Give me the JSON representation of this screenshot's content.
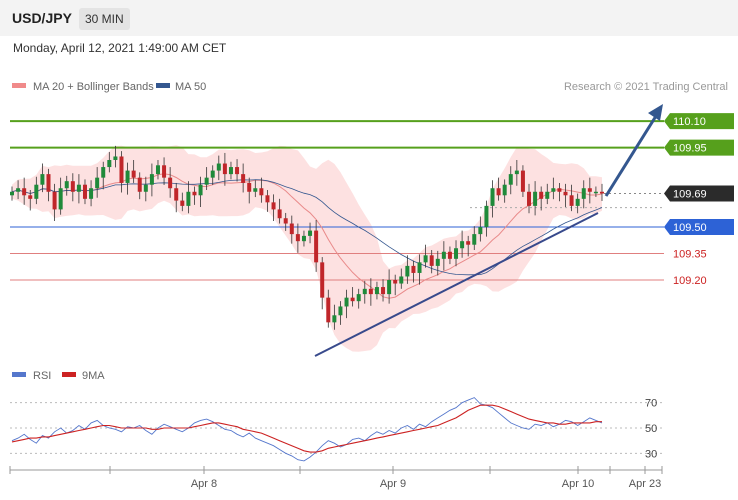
{
  "header": {
    "symbol": "USD/JPY",
    "timeframe": "30 MIN"
  },
  "datetime": "Monday, April 12, 2021 1:49:00 AM CET",
  "legend": [
    {
      "label": "MA 20 + Bollinger Bands",
      "color": "#f08a8a"
    },
    {
      "label": "MA 50",
      "color": "#34578f"
    }
  ],
  "credit": "Research © 2021 Trading Central",
  "rsi_legend": [
    {
      "label": "RSI",
      "color": "#5577cc"
    },
    {
      "label": "9MA",
      "color": "#cc2222"
    }
  ],
  "colors": {
    "resistance": "#56a01c",
    "support": "#2d62d6",
    "pivot_dark": "#2b2b2b",
    "red_line": "#e07f7f",
    "trend_line": "#384a8c",
    "arrow": "#34578f",
    "bollinger_fill": "#fcd9d9"
  },
  "chart_data": [
    {
      "type": "candlestick",
      "title": "USD/JPY",
      "timeframe": "30 MIN",
      "x_tick_labels": [
        "Apr 8",
        "Apr 9",
        "Apr 10",
        "Apr 23"
      ],
      "ylim": [
        108.69,
        110.22
      ],
      "level_labels": [
        {
          "value": 110.1,
          "text": "110.10",
          "style": "green-box"
        },
        {
          "value": 109.95,
          "text": "109.95",
          "style": "green-box"
        },
        {
          "value": 109.69,
          "text": "109.69",
          "style": "dark-box"
        },
        {
          "value": 109.5,
          "text": "109.50",
          "style": "blue-box"
        },
        {
          "value": 109.35,
          "text": "109.35",
          "style": "red-text"
        },
        {
          "value": 109.2,
          "text": "109.20",
          "style": "red-text"
        }
      ],
      "close": [
        109.7,
        109.72,
        109.68,
        109.66,
        109.74,
        109.8,
        109.7,
        109.6,
        109.72,
        109.76,
        109.7,
        109.74,
        109.66,
        109.72,
        109.78,
        109.84,
        109.88,
        109.9,
        109.75,
        109.82,
        109.78,
        109.7,
        109.74,
        109.8,
        109.85,
        109.78,
        109.72,
        109.65,
        109.62,
        109.7,
        109.68,
        109.74,
        109.78,
        109.82,
        109.86,
        109.8,
        109.84,
        109.8,
        109.75,
        109.7,
        109.72,
        109.68,
        109.64,
        109.6,
        109.55,
        109.52,
        109.46,
        109.42,
        109.45,
        109.48,
        109.3,
        109.1,
        108.96,
        109.0,
        109.05,
        109.1,
        109.08,
        109.12,
        109.15,
        109.12,
        109.16,
        109.12,
        109.2,
        109.18,
        109.22,
        109.28,
        109.24,
        109.3,
        109.34,
        109.28,
        109.32,
        109.36,
        109.32,
        109.38,
        109.42,
        109.4,
        109.46,
        109.5,
        109.62,
        109.72,
        109.68,
        109.74,
        109.8,
        109.82,
        109.7,
        109.62,
        109.7,
        109.66,
        109.7,
        109.72,
        109.7,
        109.68,
        109.62,
        109.66,
        109.72,
        109.7,
        109.7,
        109.69
      ],
      "rsi": {
        "ylim": [
          20,
          80
        ],
        "ticks": [
          70,
          50,
          30
        ],
        "rsi_values": [
          40,
          42,
          45,
          41,
          38,
          44,
          42,
          47,
          50,
          46,
          48,
          52,
          49,
          54,
          56,
          52,
          50,
          49,
          47,
          51,
          50,
          52,
          48,
          45,
          50,
          53,
          51,
          49,
          47,
          50,
          54,
          56,
          57,
          55,
          52,
          49,
          48,
          45,
          43,
          46,
          42,
          40,
          38,
          36,
          33,
          30,
          28,
          25,
          24,
          27,
          31,
          36,
          40,
          38,
          35,
          37,
          41,
          42,
          40,
          44,
          47,
          45,
          48,
          46,
          50,
          52,
          49,
          53,
          51,
          55,
          58,
          61,
          64,
          66,
          70,
          72,
          74,
          69,
          68,
          66,
          62,
          58,
          54,
          52,
          50,
          49,
          53,
          52,
          54,
          51,
          53,
          56,
          55,
          52,
          55,
          58,
          56,
          54
        ],
        "ma9_values": [
          39,
          40,
          41,
          42,
          42,
          43,
          43,
          44,
          45,
          46,
          47,
          48,
          49,
          50,
          51,
          52,
          52,
          51,
          50,
          50,
          50,
          50,
          50,
          49,
          49,
          50,
          50,
          50,
          50,
          50,
          51,
          52,
          53,
          54,
          54,
          53,
          52,
          51,
          49,
          48,
          47,
          46,
          44,
          42,
          40,
          38,
          36,
          34,
          32,
          31,
          31,
          32,
          34,
          35,
          36,
          37,
          38,
          39,
          40,
          41,
          42,
          43,
          44,
          45,
          46,
          47,
          48,
          49,
          50,
          51,
          52,
          54,
          56,
          58,
          61,
          64,
          66,
          68,
          68,
          68,
          67,
          65,
          63,
          61,
          59,
          57,
          56,
          55,
          54,
          54,
          53,
          53,
          54,
          54,
          54,
          54,
          55,
          55
        ]
      }
    }
  ]
}
